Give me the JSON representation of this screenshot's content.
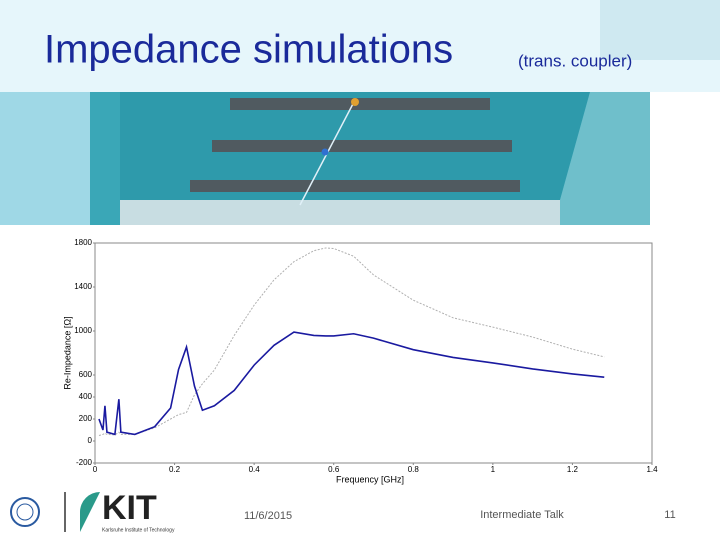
{
  "title": "Impedance simulations",
  "subtitle": "(trans. coupler)",
  "logo": {
    "name": "KIT",
    "caption": "Karlsruhe Institute of Technology"
  },
  "footer": {
    "date": "11/6/2015",
    "talk": "Intermediate Talk",
    "page": "11"
  },
  "chart_data": {
    "type": "line",
    "xlabel": "Frequency [GHz]",
    "ylabel": "Re-Impedance [Ω]",
    "x": [
      0.01,
      0.02,
      0.025,
      0.03,
      0.05,
      0.06,
      0.065,
      0.1,
      0.15,
      0.19,
      0.21,
      0.23,
      0.25,
      0.27,
      0.3,
      0.35,
      0.4,
      0.45,
      0.5,
      0.55,
      0.58,
      0.6,
      0.65,
      0.7,
      0.8,
      0.9,
      1.0,
      1.1,
      1.2,
      1.28
    ],
    "series": [
      {
        "color": "#b0b0b0",
        "dashed": true,
        "values": [
          50,
          60,
          70,
          60,
          55,
          80,
          60,
          60,
          120,
          200,
          240,
          260,
          420,
          520,
          645,
          960,
          1235,
          1465,
          1630,
          1730,
          1755,
          1750,
          1680,
          1510,
          1280,
          1120,
          1035,
          945,
          835,
          765
        ]
      },
      {
        "color": "#1a1aa0",
        "dashed": false,
        "values": [
          200,
          100,
          320,
          80,
          60,
          380,
          80,
          60,
          130,
          300,
          650,
          855,
          500,
          280,
          320,
          460,
          690,
          870,
          990,
          960,
          955,
          955,
          975,
          935,
          830,
          760,
          710,
          655,
          610,
          580
        ]
      }
    ],
    "xlim": [
      0,
      1.4
    ],
    "xticks": [
      0,
      0.2,
      0.4,
      0.6,
      0.8,
      1,
      1.2,
      1.4
    ],
    "ylim": [
      -200,
      1800
    ],
    "yticks": [
      1800,
      1400,
      1000,
      600,
      400,
      200,
      0,
      -200
    ],
    "grid": false
  }
}
